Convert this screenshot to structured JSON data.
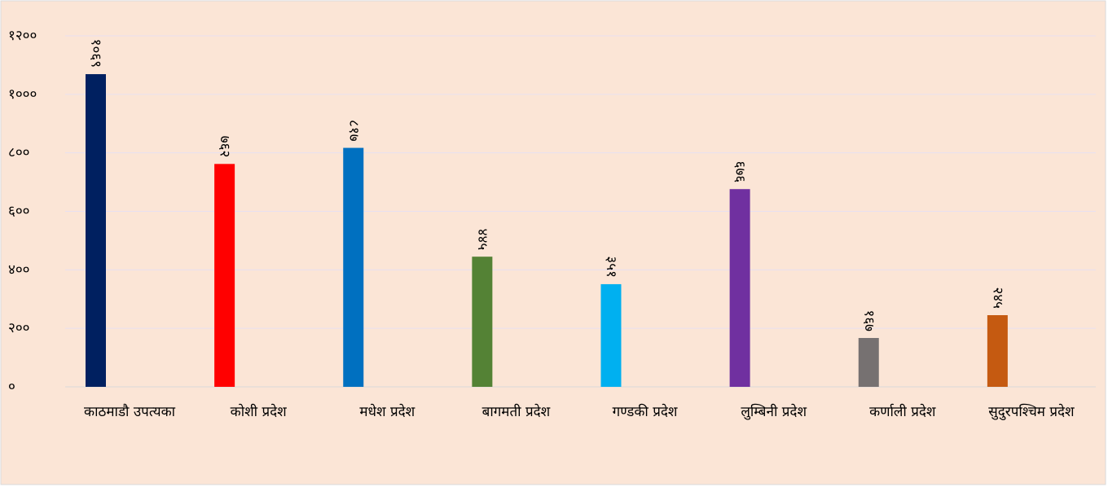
{
  "chart_data": {
    "type": "bar",
    "categories": [
      "काठमाडौ उपत्यका",
      "कोशी प्रदेश",
      "मधेश प्रदेश",
      "बागमती प्रदेश",
      "गण्डकी प्रदेश",
      "लुम्बिनी प्रदेश",
      "कर्णाली प्रदेश",
      "सुदुरपश्चिम प्रदेश"
    ],
    "values": [
      1069,
      762,
      817,
      445,
      351,
      676,
      167,
      245
    ],
    "value_labels": [
      "१०६९",
      "७६२",
      "८१७",
      "४४५",
      "३५१",
      "६७६",
      "१६७",
      "२४५"
    ],
    "colors": [
      "#002060",
      "#ff0000",
      "#0070c0",
      "#548235",
      "#00b0f0",
      "#7030a0",
      "#767171",
      "#c55a11"
    ],
    "ylim": [
      0,
      1200
    ],
    "yticks": [
      {
        "value": 0,
        "label": "०"
      },
      {
        "value": 200,
        "label": "२००"
      },
      {
        "value": 400,
        "label": "४००"
      },
      {
        "value": 600,
        "label": "६००"
      },
      {
        "value": 800,
        "label": "८००"
      },
      {
        "value": 1000,
        "label": "१०००"
      },
      {
        "value": 1200,
        "label": "१२००"
      }
    ],
    "grid": true
  }
}
